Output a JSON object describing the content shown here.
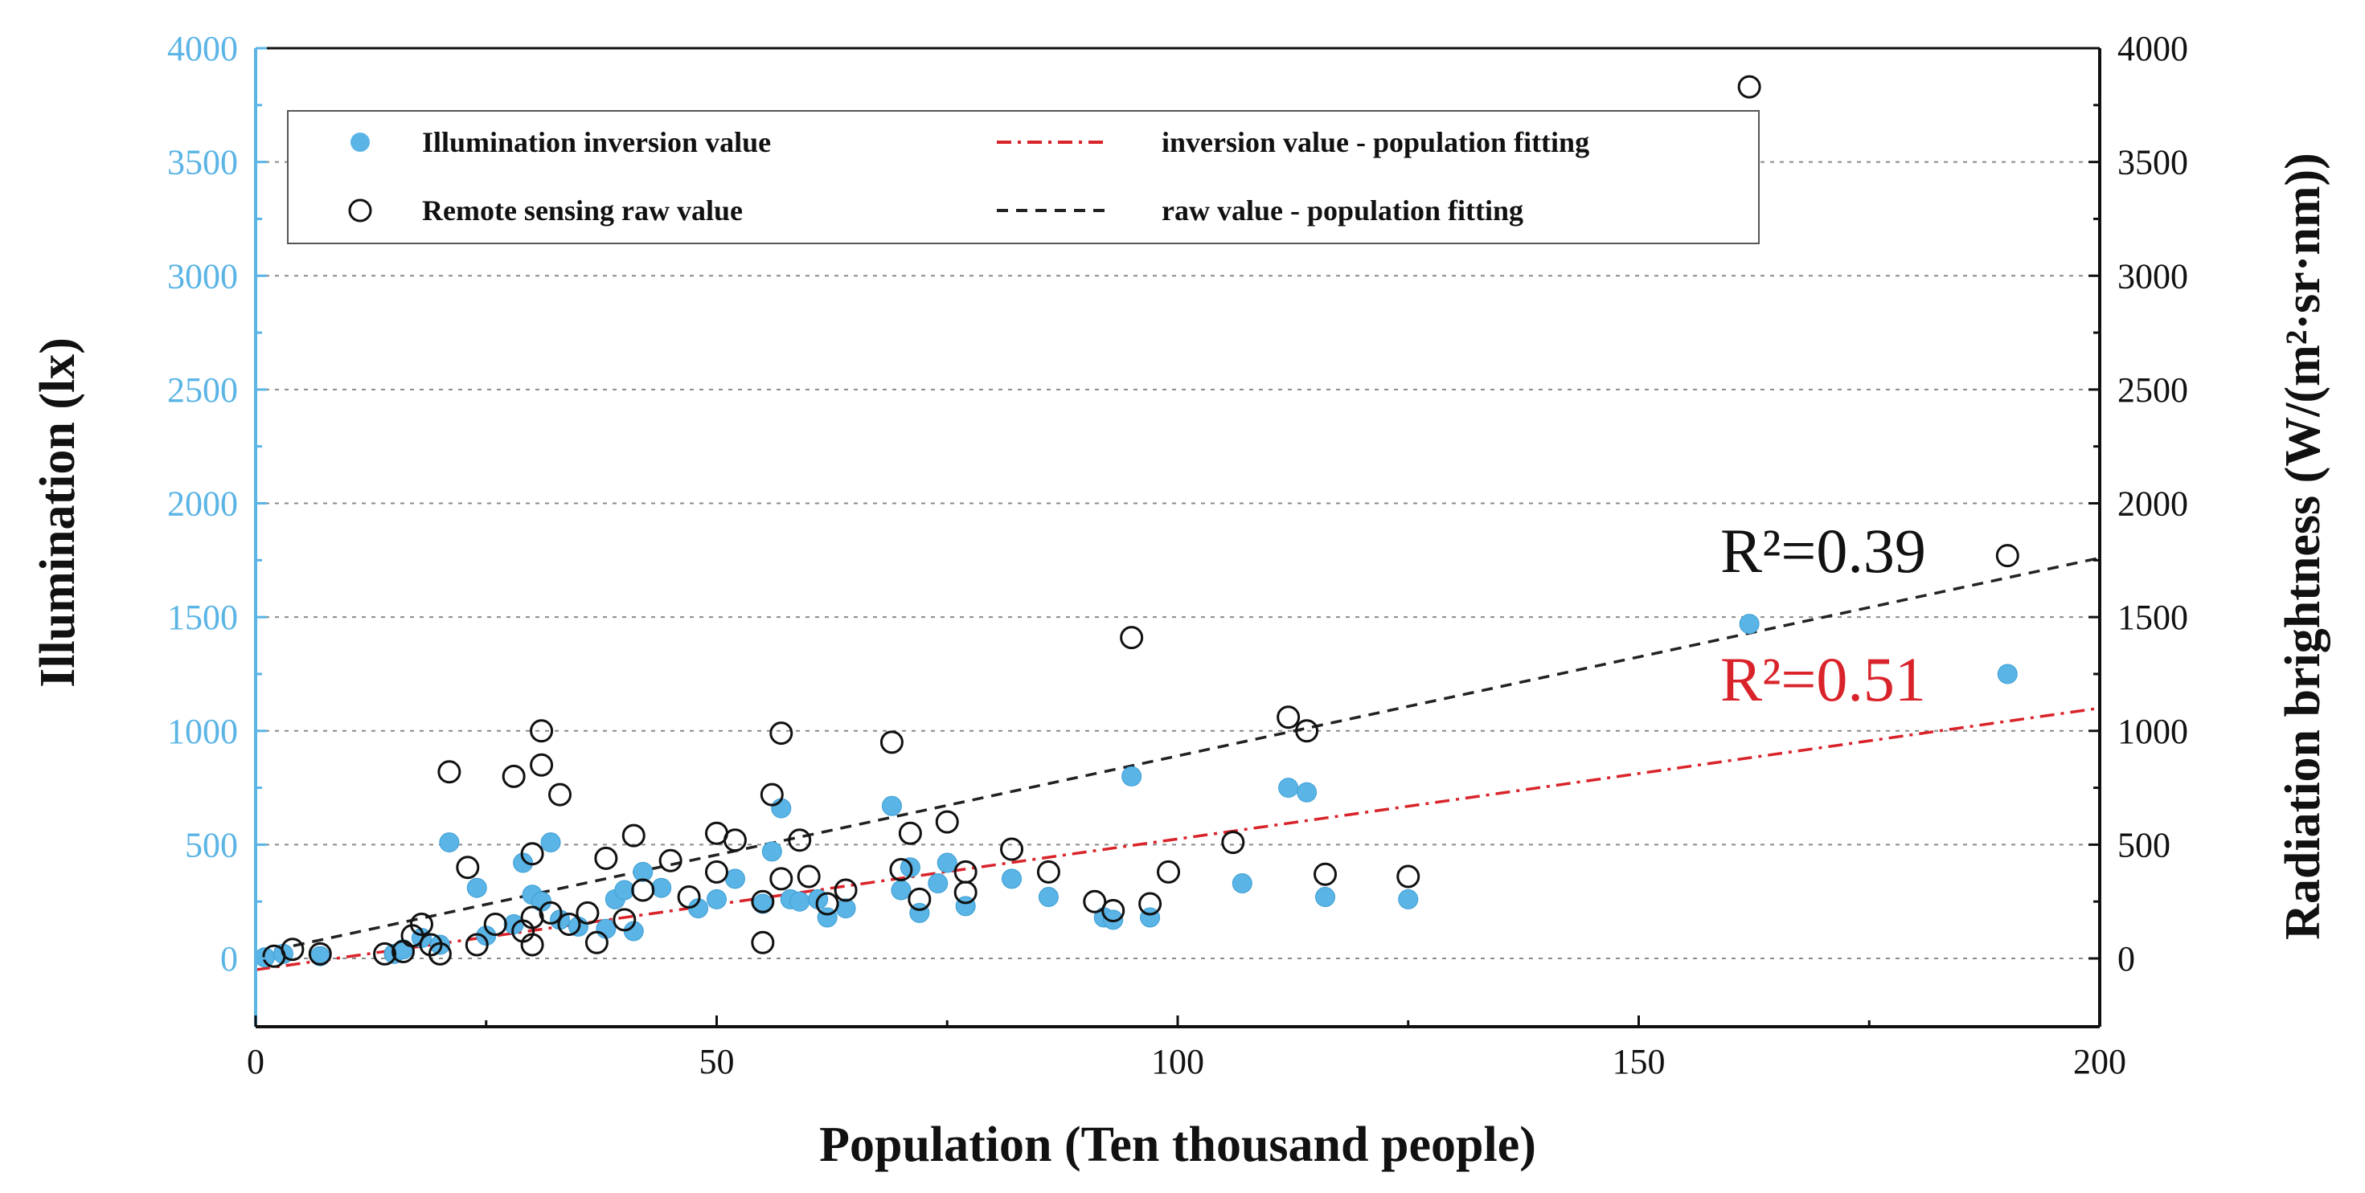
{
  "chart_data": {
    "type": "scatter",
    "xlabel": "Population (Ten thousand people)",
    "ylabel_left": "Illumination (lx)",
    "ylabel_right": "Radiation brightness (W/(m²·sr·nm))",
    "xlim": [
      0,
      200
    ],
    "ylim": [
      -300,
      4000
    ],
    "x_ticks": [
      "0",
      "50",
      "100",
      "150",
      "200"
    ],
    "y_ticks_left": [
      "0",
      "500",
      "1000",
      "1500",
      "2000",
      "2500",
      "3000",
      "3500",
      "4000"
    ],
    "y_ticks_right": [
      "0",
      "500",
      "1000",
      "1500",
      "2000",
      "2500",
      "3000",
      "3500",
      "4000"
    ],
    "grid": "horizontal dotted",
    "legend_position": "top-left",
    "colors": {
      "inversion": "#5ab4e5",
      "raw": "#111111",
      "inversion_fit": "#d9232a",
      "raw_fit": "#222222"
    },
    "series": [
      {
        "name": "Illumination inversion value",
        "axis": "left",
        "marker": "filled-circle",
        "points": [
          [
            1,
            5
          ],
          [
            3,
            20
          ],
          [
            7,
            10
          ],
          [
            15,
            20
          ],
          [
            16,
            40
          ],
          [
            18,
            90
          ],
          [
            20,
            60
          ],
          [
            21,
            510
          ],
          [
            24,
            310
          ],
          [
            25,
            100
          ],
          [
            28,
            150
          ],
          [
            29,
            420
          ],
          [
            30,
            280
          ],
          [
            31,
            250
          ],
          [
            32,
            510
          ],
          [
            33,
            170
          ],
          [
            35,
            140
          ],
          [
            38,
            130
          ],
          [
            39,
            260
          ],
          [
            40,
            300
          ],
          [
            41,
            120
          ],
          [
            42,
            380
          ],
          [
            44,
            310
          ],
          [
            48,
            220
          ],
          [
            50,
            260
          ],
          [
            52,
            350
          ],
          [
            55,
            240
          ],
          [
            56,
            470
          ],
          [
            57,
            660
          ],
          [
            58,
            260
          ],
          [
            59,
            250
          ],
          [
            61,
            260
          ],
          [
            62,
            180
          ],
          [
            64,
            220
          ],
          [
            69,
            670
          ],
          [
            70,
            300
          ],
          [
            71,
            400
          ],
          [
            72,
            200
          ],
          [
            74,
            330
          ],
          [
            75,
            420
          ],
          [
            77,
            230
          ],
          [
            82,
            350
          ],
          [
            86,
            270
          ],
          [
            92,
            180
          ],
          [
            93,
            170
          ],
          [
            95,
            800
          ],
          [
            97,
            180
          ],
          [
            107,
            330
          ],
          [
            112,
            750
          ],
          [
            114,
            730
          ],
          [
            116,
            270
          ],
          [
            125,
            260
          ],
          [
            162,
            1470
          ],
          [
            190,
            1250
          ]
        ]
      },
      {
        "name": "Remote sensing raw value",
        "axis": "right",
        "marker": "open-circle",
        "points": [
          [
            2,
            10
          ],
          [
            4,
            40
          ],
          [
            7,
            20
          ],
          [
            14,
            20
          ],
          [
            16,
            30
          ],
          [
            17,
            100
          ],
          [
            18,
            150
          ],
          [
            19,
            60
          ],
          [
            20,
            20
          ],
          [
            21,
            820
          ],
          [
            23,
            400
          ],
          [
            24,
            60
          ],
          [
            26,
            150
          ],
          [
            28,
            800
          ],
          [
            29,
            120
          ],
          [
            30,
            180
          ],
          [
            30,
            60
          ],
          [
            30,
            460
          ],
          [
            31,
            1000
          ],
          [
            31,
            850
          ],
          [
            32,
            200
          ],
          [
            33,
            720
          ],
          [
            34,
            150
          ],
          [
            36,
            200
          ],
          [
            37,
            70
          ],
          [
            38,
            440
          ],
          [
            40,
            170
          ],
          [
            41,
            540
          ],
          [
            42,
            300
          ],
          [
            45,
            430
          ],
          [
            47,
            270
          ],
          [
            50,
            550
          ],
          [
            50,
            380
          ],
          [
            52,
            520
          ],
          [
            55,
            250
          ],
          [
            55,
            70
          ],
          [
            56,
            720
          ],
          [
            57,
            990
          ],
          [
            57,
            350
          ],
          [
            59,
            520
          ],
          [
            60,
            360
          ],
          [
            62,
            240
          ],
          [
            64,
            300
          ],
          [
            69,
            950
          ],
          [
            70,
            390
          ],
          [
            71,
            550
          ],
          [
            72,
            260
          ],
          [
            75,
            600
          ],
          [
            77,
            380
          ],
          [
            77,
            290
          ],
          [
            82,
            480
          ],
          [
            86,
            380
          ],
          [
            91,
            250
          ],
          [
            93,
            210
          ],
          [
            95,
            1410
          ],
          [
            97,
            240
          ],
          [
            99,
            380
          ],
          [
            106,
            510
          ],
          [
            112,
            1060
          ],
          [
            114,
            1000
          ],
          [
            116,
            370
          ],
          [
            125,
            360
          ],
          [
            162,
            3830
          ],
          [
            190,
            1770
          ]
        ]
      }
    ],
    "fits": [
      {
        "name": "inversion value - population fitting",
        "of": "Illumination inversion value",
        "x": [
          0,
          200
        ],
        "y": [
          -50,
          1100
        ],
        "r2_label": "R²=0.51",
        "style": "dash-dot"
      },
      {
        "name": "raw value - population fitting",
        "of": "Remote sensing raw value",
        "x": [
          0,
          200
        ],
        "y": [
          20,
          1760
        ],
        "r2_label": "R²=0.39",
        "style": "dashed"
      }
    ],
    "legend": [
      {
        "label": "Illumination inversion value",
        "key": "inversion"
      },
      {
        "label": "inversion value - population fitting",
        "key": "inversion_fit"
      },
      {
        "label": "Remote sensing raw value",
        "key": "raw"
      },
      {
        "label": "raw value - population fitting",
        "key": "raw_fit"
      }
    ]
  }
}
